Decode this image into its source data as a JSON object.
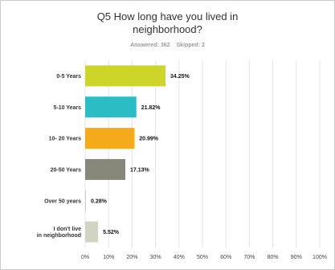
{
  "question": {
    "number": "Q5",
    "text": "How long have you lived in neighborhood?"
  },
  "meta": {
    "answered": "Answered: 362",
    "skipped": "Skipped: 2"
  },
  "chart_data": {
    "type": "bar",
    "orientation": "horizontal",
    "title": "Q5 How long have you lived in neighborhood?",
    "categories": [
      "0-5 Years",
      "5-10 Years",
      "10- 20 Years",
      "20-50 Years",
      "Over 50 years",
      "I don't live in neighborhood"
    ],
    "category_lines": [
      [
        "0-5 Years"
      ],
      [
        "5-10 Years"
      ],
      [
        "10- 20 Years"
      ],
      [
        "20-50 Years"
      ],
      [
        "Over 50 years"
      ],
      [
        "I don't live",
        "in neighborhood"
      ]
    ],
    "values": [
      34.25,
      21.82,
      20.99,
      17.13,
      0.28,
      5.52
    ],
    "value_labels": [
      "34.25%",
      "21.82%",
      "20.99%",
      "17.13%",
      "0.28%",
      "5.52%"
    ],
    "colors": [
      "#cdd42a",
      "#2bbdc3",
      "#f5aa1c",
      "#87877a",
      "#cccccc",
      "#d3d3c3"
    ],
    "xlim": [
      0,
      100
    ],
    "xticks": [
      "0%",
      "10%",
      "20%",
      "30%",
      "40%",
      "50%",
      "60%",
      "70%",
      "80%",
      "90%",
      "100%"
    ],
    "grid": true
  }
}
